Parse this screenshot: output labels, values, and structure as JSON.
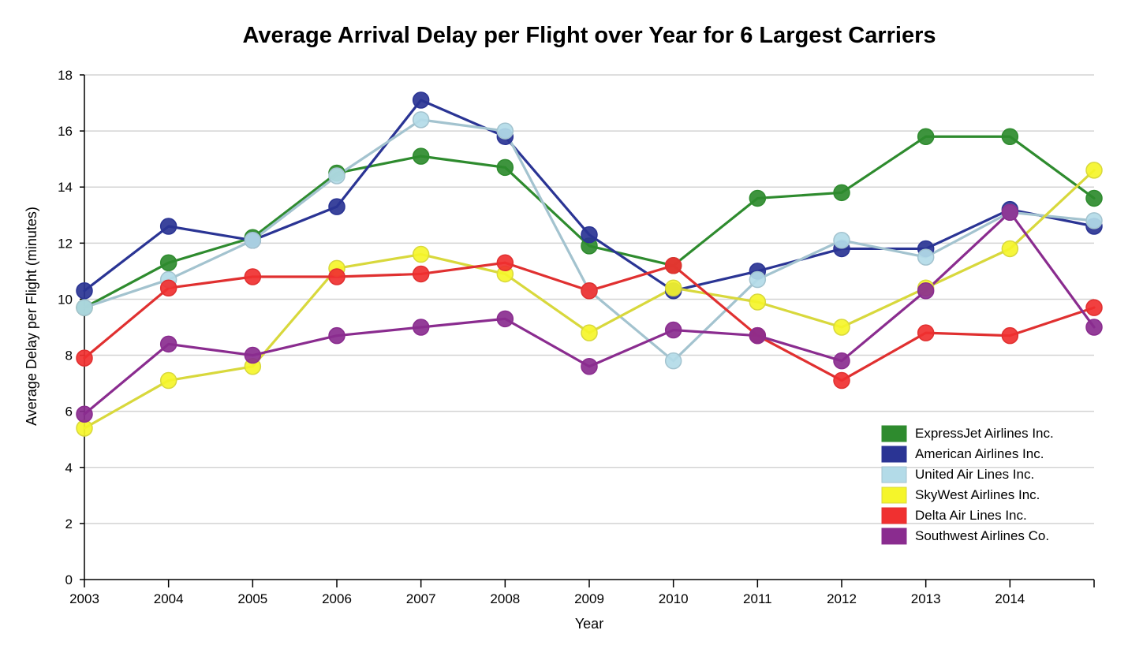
{
  "chart_data": {
    "type": "line",
    "title": "Average Arrival Delay per Flight over Year for 6 Largest Carriers",
    "xlabel": "Year",
    "ylabel": "Average Delay per Flight (minutes)",
    "x": [
      2003,
      2004,
      2005,
      2006,
      2007,
      2008,
      2009,
      2010,
      2011,
      2012,
      2013,
      2014,
      2015
    ],
    "x_tick_labels": [
      "2003",
      "2004",
      "2005",
      "2006",
      "2007",
      "2008",
      "2009",
      "2010",
      "2011",
      "2012",
      "2013",
      "2014"
    ],
    "y_ticks": [
      0,
      2,
      4,
      6,
      8,
      10,
      12,
      14,
      16,
      18
    ],
    "xlim": [
      2003,
      2015
    ],
    "ylim": [
      0,
      18
    ],
    "grid": true,
    "legend_position": "bottom-right",
    "series": [
      {
        "name": "ExpressJet Airlines Inc.",
        "color": "#2e8b2e",
        "point_color": "#2e8b2e",
        "line_color": "#2e8b2e",
        "values": [
          9.7,
          11.3,
          12.2,
          14.5,
          15.1,
          14.7,
          11.9,
          11.2,
          13.6,
          13.8,
          15.8,
          15.8,
          13.6
        ]
      },
      {
        "name": "American Airlines Inc.",
        "color": "#2a3494",
        "point_color": "#2a3494",
        "line_color": "#2a3494",
        "values": [
          10.3,
          12.6,
          12.1,
          13.3,
          17.1,
          15.8,
          12.3,
          10.3,
          11.0,
          11.8,
          11.8,
          13.2,
          12.6
        ]
      },
      {
        "name": "United Air Lines Inc.",
        "color": "#b3dbe8",
        "point_color": "#b3dbe8",
        "line_color": "#a3c3cf",
        "values": [
          9.7,
          10.7,
          12.1,
          14.4,
          16.4,
          16.0,
          10.3,
          7.8,
          10.7,
          12.1,
          11.5,
          13.1,
          12.8
        ]
      },
      {
        "name": "SkyWest Airlines Inc.",
        "color": "#f5f52a",
        "point_color": "#f5f52a",
        "line_color": "#d8d83c",
        "values": [
          5.4,
          7.1,
          7.6,
          11.1,
          11.6,
          10.9,
          8.8,
          10.4,
          9.9,
          9.0,
          10.4,
          11.8,
          14.6
        ]
      },
      {
        "name": "Delta Air Lines Inc.",
        "color": "#f03030",
        "point_color": "#f03030",
        "line_color": "#e03030",
        "values": [
          7.9,
          10.4,
          10.8,
          10.8,
          10.9,
          11.3,
          10.3,
          11.2,
          8.7,
          7.1,
          8.8,
          8.7,
          9.7
        ]
      },
      {
        "name": "Southwest Airlines Co.",
        "color": "#8a2c8f",
        "point_color": "#8a2c8f",
        "line_color": "#8a2c8f",
        "values": [
          5.9,
          8.4,
          8.0,
          8.7,
          9.0,
          9.3,
          7.6,
          8.9,
          8.7,
          7.8,
          10.3,
          13.1,
          9.0
        ]
      }
    ]
  }
}
